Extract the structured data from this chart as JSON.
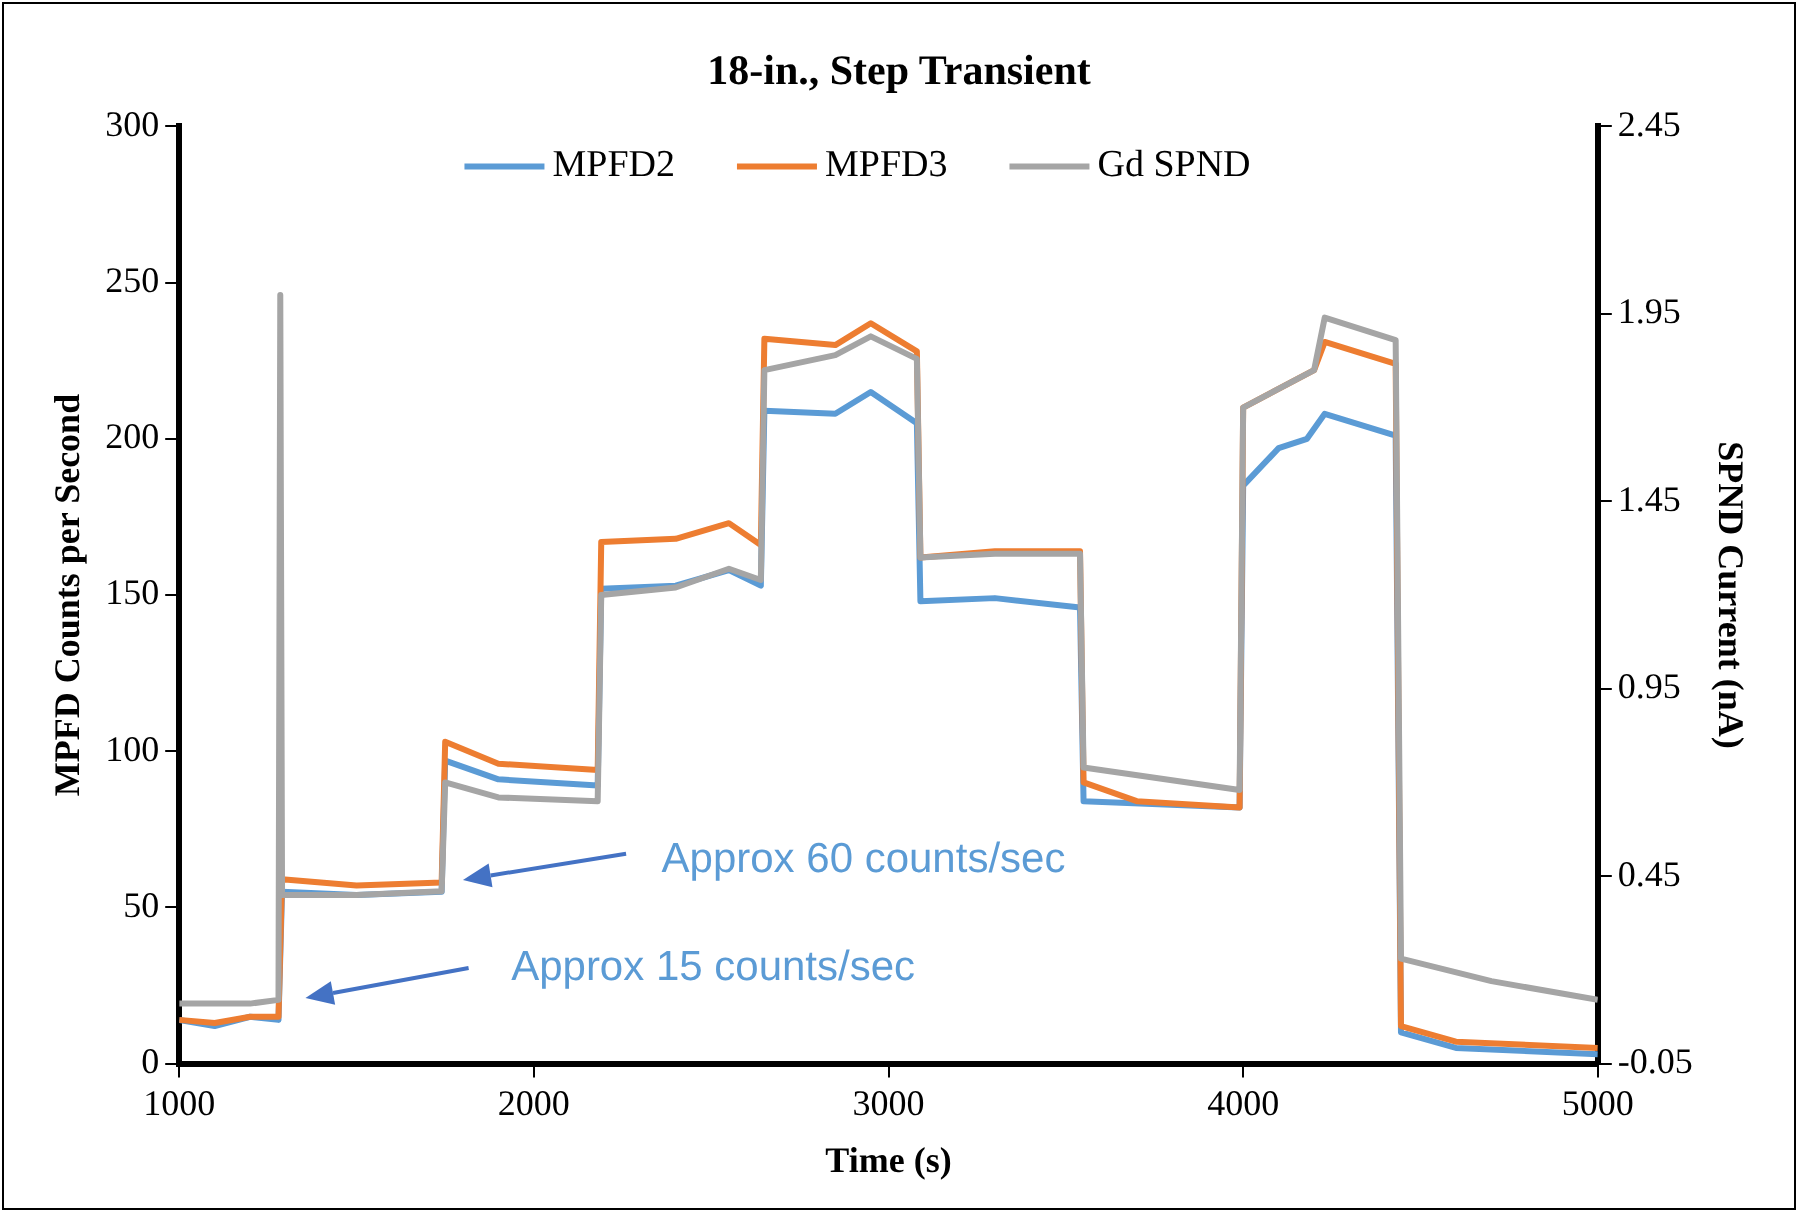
{
  "chart_data": {
    "type": "line",
    "title": "18-in., Step Transient",
    "xlabel": "Time (s)",
    "ylabel": "MPFD Counts per Second",
    "y2label": "SPND Current (nA)",
    "xlim": [
      1000,
      5000
    ],
    "xticks": [
      1000,
      2000,
      3000,
      4000,
      5000
    ],
    "ylim": [
      0,
      300
    ],
    "yticks": [
      0,
      50,
      100,
      150,
      200,
      250,
      300
    ],
    "y2lim": [
      -0.05,
      2.45
    ],
    "y2ticks": [
      -0.05,
      0.45,
      0.95,
      1.45,
      1.95,
      2.45
    ],
    "grid": false,
    "legend": "top",
    "marker": "none",
    "line_style": "solid",
    "series": [
      {
        "name": "MPFD2",
        "color": "#5b9bd5",
        "x": [
          1000,
          1100,
          1200,
          1280,
          1290,
          1500,
          1740,
          1750,
          1900,
          2180,
          2190,
          2400,
          2550,
          2640,
          2650,
          2850,
          2950,
          3080,
          3090,
          3300,
          3540,
          3550,
          3990,
          4000,
          4100,
          4180,
          4230,
          4430,
          4445,
          4600,
          5000
        ],
        "values": [
          14,
          12,
          15,
          14,
          55,
          54,
          55,
          97,
          91,
          89,
          152,
          153,
          158,
          153,
          209,
          208,
          215,
          205,
          148,
          149,
          146,
          84,
          82,
          185,
          197,
          200,
          208,
          201,
          10,
          5,
          3
        ]
      },
      {
        "name": "MPFD3",
        "color": "#ed7d31",
        "x": [
          1000,
          1100,
          1200,
          1280,
          1290,
          1500,
          1740,
          1750,
          1900,
          2180,
          2190,
          2400,
          2550,
          2640,
          2650,
          2850,
          2950,
          3080,
          3090,
          3300,
          3540,
          3550,
          3700,
          3990,
          4000,
          4200,
          4230,
          4430,
          4445,
          4600,
          5000
        ],
        "values": [
          14,
          13,
          15,
          15,
          59,
          57,
          58,
          103,
          96,
          94,
          167,
          168,
          173,
          166,
          232,
          230,
          237,
          228,
          162,
          164,
          164,
          90,
          84,
          82,
          210,
          222,
          231,
          224,
          12,
          7,
          5
        ]
      },
      {
        "name": "Gd SPND",
        "color": "#a5a5a5",
        "axis": "y2",
        "x": [
          1000,
          1200,
          1280,
          1285,
          1290,
          1500,
          1740,
          1750,
          1900,
          2180,
          2190,
          2400,
          2550,
          2640,
          2650,
          2850,
          2950,
          3080,
          3090,
          3300,
          3540,
          3550,
          3990,
          4000,
          4200,
          4230,
          4430,
          4445,
          4700,
          5000
        ],
        "values": [
          0.11,
          0.11,
          0.12,
          2.0,
          0.4,
          0.4,
          0.41,
          0.7,
          0.66,
          0.65,
          1.2,
          1.22,
          1.27,
          1.24,
          1.8,
          1.84,
          1.89,
          1.83,
          1.3,
          1.31,
          1.31,
          0.74,
          0.68,
          1.7,
          1.8,
          1.94,
          1.88,
          0.23,
          0.17,
          0.12
        ]
      }
    ],
    "annotations": [
      "Approx 60 counts/sec",
      "Approx 15 counts/sec"
    ]
  }
}
